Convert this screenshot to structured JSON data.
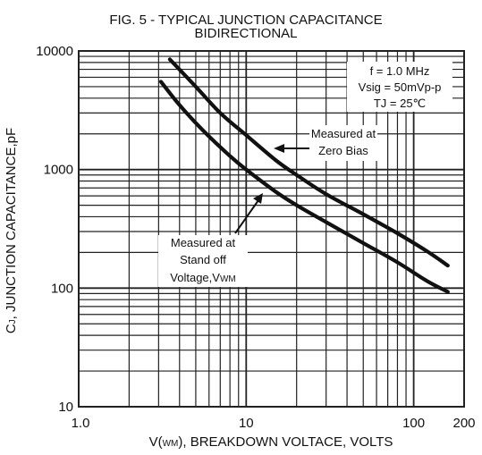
{
  "chart_data": {
    "type": "line",
    "title": "FIG. 5 - TYPICAL JUNCTION CAPACITANCE",
    "subtitle": "BIDIRECTIONAL",
    "xlabel": {
      "main": "V(",
      "sub": "WM",
      "rest": "), BREAKDOWN VOLTACE, VOLTS"
    },
    "ylabel": {
      "pre": "C",
      "sub": "J",
      "rest": ", JUNCTION CAPACITANCE,pF"
    },
    "x_scale": "log",
    "y_scale": "log",
    "xlim": [
      1,
      200
    ],
    "ylim": [
      10,
      10000
    ],
    "x_ticks": [
      {
        "value": 1,
        "label": "1.0"
      },
      {
        "value": 10,
        "label": "10"
      },
      {
        "value": 100,
        "label": "100"
      },
      {
        "value": 200,
        "label": "200"
      }
    ],
    "y_ticks": [
      {
        "value": 10,
        "label": "10"
      },
      {
        "value": 100,
        "label": "100"
      },
      {
        "value": 1000,
        "label": "1000"
      },
      {
        "value": 10000,
        "label": "10000"
      }
    ],
    "grid": true,
    "series": [
      {
        "x": [
          3.5,
          5,
          7,
          10,
          15,
          20,
          30,
          50,
          80,
          120,
          160
        ],
        "y": [
          8500,
          5000,
          3000,
          1950,
          1200,
          900,
          620,
          420,
          290,
          205,
          155
        ]
      },
      {
        "x": [
          3.1,
          4,
          5.5,
          8,
          10,
          15,
          20,
          30,
          50,
          80,
          120,
          160
        ],
        "y": [
          5500,
          3500,
          2150,
          1300,
          1000,
          650,
          500,
          360,
          240,
          165,
          115,
          93
        ]
      }
    ],
    "conditions": [
      "f = 1.0 MHz",
      "Vsig = 50mVp-p",
      "TJ = 25℃"
    ],
    "annotations": [
      {
        "lines": [
          "Measured at",
          "Zero Bias"
        ]
      },
      {
        "lines": [
          "Measured at",
          "Stand off",
          "Voltage,V"
        ],
        "sub": "WM"
      }
    ]
  },
  "colors": {
    "line": "#111111",
    "grid": "#222222",
    "background": "#ffffff"
  }
}
